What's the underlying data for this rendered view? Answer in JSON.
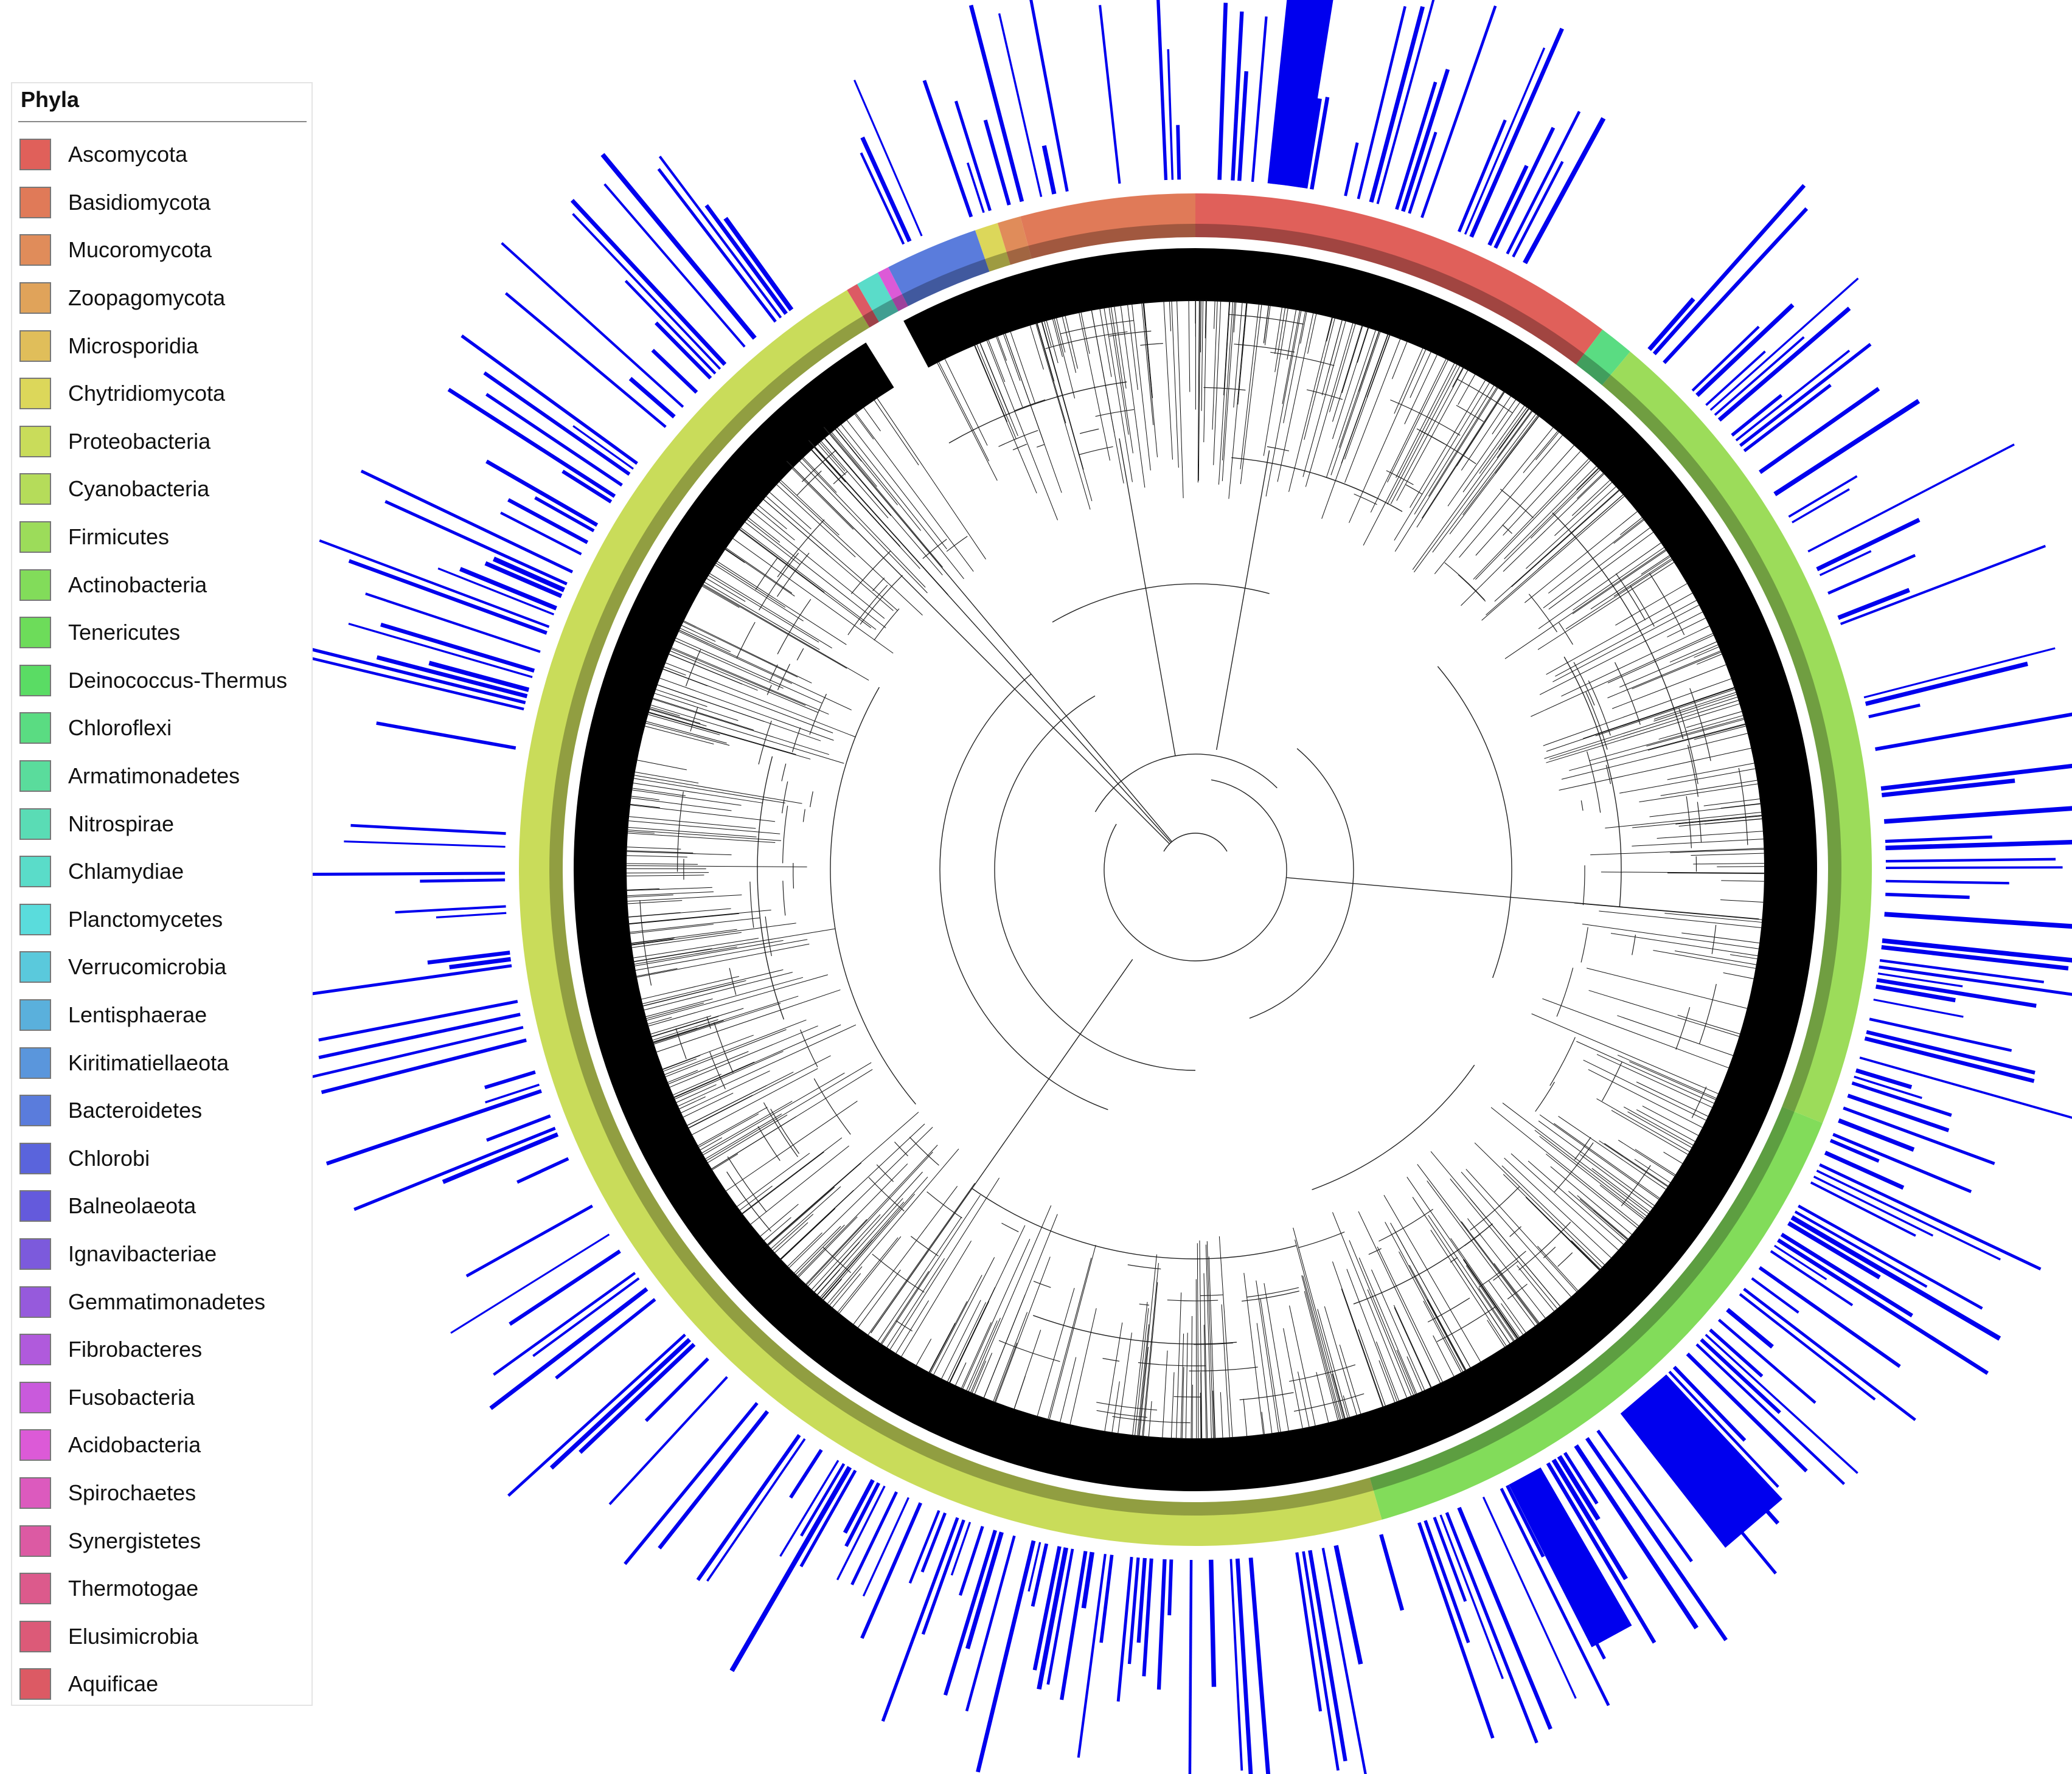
{
  "legend": {
    "title": "Phyla",
    "items": [
      {
        "label": "Ascomycota",
        "color": "#e0605a"
      },
      {
        "label": "Basidiomycota",
        "color": "#e07a58"
      },
      {
        "label": "Mucoromycota",
        "color": "#e08c5a"
      },
      {
        "label": "Zoopagomycota",
        "color": "#e0a35a"
      },
      {
        "label": "Microsporidia",
        "color": "#e0be5a"
      },
      {
        "label": "Chytridiomycota",
        "color": "#dcd75a"
      },
      {
        "label": "Proteobacteria",
        "color": "#c9dc5a"
      },
      {
        "label": "Cyanobacteria",
        "color": "#b5dc5a"
      },
      {
        "label": "Firmicutes",
        "color": "#9cdc5a"
      },
      {
        "label": "Actinobacteria",
        "color": "#82dc5a"
      },
      {
        "label": "Tenericutes",
        "color": "#6ddc5a"
      },
      {
        "label": "Deinococcus-Thermus",
        "color": "#5adc64"
      },
      {
        "label": "Chloroflexi",
        "color": "#5adc82"
      },
      {
        "label": "Armatimonadetes",
        "color": "#5adc9c"
      },
      {
        "label": "Nitrospirae",
        "color": "#5adcb5"
      },
      {
        "label": "Chlamydiae",
        "color": "#5adcc9"
      },
      {
        "label": "Planctomycetes",
        "color": "#5adcdc"
      },
      {
        "label": "Verrucomicrobia",
        "color": "#5ac9dc"
      },
      {
        "label": "Lentisphaerae",
        "color": "#5ab0dc"
      },
      {
        "label": "Kiritimatiellaeota",
        "color": "#5a96dc"
      },
      {
        "label": "Bacteroidetes",
        "color": "#5a7cdc"
      },
      {
        "label": "Chlorobi",
        "color": "#5a64dc"
      },
      {
        "label": "Balneolaeota",
        "color": "#645adc"
      },
      {
        "label": "Ignavibacteriae",
        "color": "#7c5adc"
      },
      {
        "label": "Gemmatimonadetes",
        "color": "#965adc"
      },
      {
        "label": "Fibrobacteres",
        "color": "#b05adc"
      },
      {
        "label": "Fusobacteria",
        "color": "#c95adc"
      },
      {
        "label": "Acidobacteria",
        "color": "#dc5ad7"
      },
      {
        "label": "Spirochaetes",
        "color": "#dc5abe"
      },
      {
        "label": "Synergistetes",
        "color": "#dc5aa3"
      },
      {
        "label": "Thermotogae",
        "color": "#dc5a8c"
      },
      {
        "label": "Elusimicrobia",
        "color": "#dc5a78"
      },
      {
        "label": "Aquificae",
        "color": "#dc5a64"
      }
    ]
  },
  "figure": {
    "ring_segments": [
      {
        "phylum": "Ascomycota",
        "start_deg": 0,
        "end_deg": 37,
        "color": "#e0605a"
      },
      {
        "phylum": "Chloroflexi",
        "start_deg": 37,
        "end_deg": 40,
        "color": "#5adc82"
      },
      {
        "phylum": "Firmicutes",
        "start_deg": 40,
        "end_deg": 112,
        "color": "#9cdc5a"
      },
      {
        "phylum": "Actinobacteria",
        "start_deg": 112,
        "end_deg": 164,
        "color": "#82dc5a"
      },
      {
        "phylum": "Proteobacteria",
        "start_deg": 164,
        "end_deg": 329,
        "color": "#c9dc5a"
      },
      {
        "phylum": "Aquificae",
        "start_deg": 329,
        "end_deg": 330,
        "color": "#dc5a64"
      },
      {
        "phylum": "Chlamydiae",
        "start_deg": 330,
        "end_deg": 332,
        "color": "#5adcc9"
      },
      {
        "phylum": "Acidobacteria",
        "start_deg": 332,
        "end_deg": 333,
        "color": "#dc5ad7"
      },
      {
        "phylum": "Bacteroidetes",
        "start_deg": 333,
        "end_deg": 341,
        "color": "#5a7cdc"
      },
      {
        "phylum": "Chytridiomycota",
        "start_deg": 341,
        "end_deg": 343,
        "color": "#dcd75a"
      },
      {
        "phylum": "Mucoromycota",
        "start_deg": 343,
        "end_deg": 345,
        "color": "#e08c5a"
      },
      {
        "phylum": "Basidiomycota",
        "start_deg": 345,
        "end_deg": 360,
        "color": "#e07a58"
      }
    ],
    "bar_color": "#0000ee"
  }
}
